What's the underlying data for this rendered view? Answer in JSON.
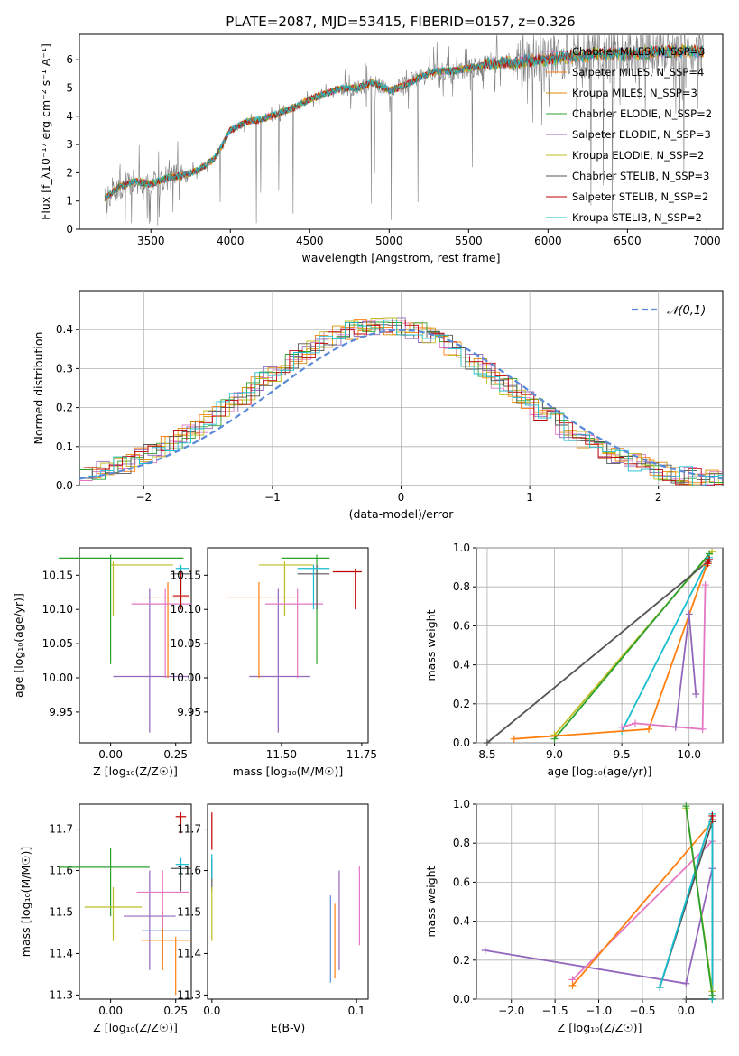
{
  "title": "PLATE=2087, MJD=53415, FIBERID=0157, z=0.326",
  "colors": {
    "chabrier_miles": "#e377c2",
    "salpeter_miles": "#ff7f0e",
    "kroupa_miles": "#e08b00",
    "chabrier_elodie": "#2ca02c",
    "salpeter_elodie": "#9467bd",
    "kroupa_elodie": "#bcbd22",
    "chabrier_stelib": "#555555",
    "salpeter_stelib": "#c00000",
    "kroupa_stelib": "#17becf",
    "data": "#808080",
    "normal": "#5a8ad8"
  },
  "chart_data": [
    {
      "type": "line",
      "xlabel": "wavelength [Angstrom, rest frame]",
      "ylabel": "Flux [f_λ10⁻¹⁷ erg cm⁻² s⁻¹ A⁻¹]",
      "xlim": [
        3050,
        7100
      ],
      "ylim": [
        0,
        6.9
      ],
      "xticks": [
        "3500",
        "4000",
        "4500",
        "5000",
        "5500",
        "6000",
        "6500",
        "7000"
      ],
      "yticks": [
        "0",
        "1",
        "2",
        "3",
        "4",
        "5",
        "6"
      ],
      "legend": [
        "Chabrier MILES, N_SSP=3",
        "Salpeter MILES, N_SSP=4",
        "Kroupa MILES, N_SSP=3",
        "Chabrier ELODIE, N_SSP=2",
        "Salpeter ELODIE, N_SSP=3",
        "Kroupa ELODIE, N_SSP=2",
        "Chabrier STELIB, N_SSP=3",
        "Salpeter STELIB, N_SSP=2",
        "Kroupa STELIB, N_SSP=2"
      ],
      "legend_placement": "right",
      "model_continuum": {
        "x": [
          3210,
          3300,
          3400,
          3500,
          3600,
          3700,
          3800,
          3900,
          4000,
          4100,
          4200,
          4300,
          4400,
          4500,
          4600,
          4700,
          4800,
          4900,
          5000,
          5100,
          5200,
          5300,
          5400,
          5500,
          5600,
          5700,
          5800,
          5900,
          6000,
          6100,
          6200,
          6300,
          6400,
          6500,
          6600,
          6700,
          6800,
          6900,
          7000
        ],
        "y": [
          1.1,
          1.5,
          1.7,
          1.6,
          1.8,
          1.9,
          2.1,
          2.5,
          3.5,
          3.8,
          3.9,
          4.1,
          4.3,
          4.6,
          4.8,
          5.0,
          5.0,
          5.2,
          4.9,
          5.1,
          5.4,
          5.6,
          5.6,
          5.7,
          5.8,
          5.9,
          5.9,
          6.0,
          6.0,
          6.1,
          6.1,
          6.2,
          6.2,
          6.2,
          6.2,
          6.3,
          6.3,
          6.3,
          6.3
        ]
      }
    },
    {
      "type": "line",
      "xlabel": "(data-model)/error",
      "ylabel": "Normed distribution",
      "xlim": [
        -2.5,
        2.5
      ],
      "ylim": [
        0,
        0.5
      ],
      "xticks": [
        "−2",
        "−1",
        "0",
        "1",
        "2"
      ],
      "yticks": [
        "0.0",
        "0.1",
        "0.2",
        "0.3",
        "0.4"
      ],
      "legend": [
        "𝒩(0,1)"
      ],
      "legend_placement": "top-right",
      "grid": true
    },
    {
      "type": "scatter",
      "xlabel": "Z [log₁₀(Z/Z☉)]",
      "ylabel": "age  [log₁₀(age/yr)]",
      "xlim": [
        -0.12,
        0.31
      ],
      "ylim": [
        9.905,
        10.19
      ],
      "xticks": [
        "0.00",
        "0.25"
      ],
      "yticks": [
        "9.95",
        "10.00",
        "10.05",
        "10.10",
        "10.15"
      ],
      "points": [
        {
          "x": 0.0,
          "xe": [
            -0.2,
            0.28
          ],
          "y": 10.175,
          "ye": [
            10.02,
            10.18
          ],
          "c": "chabrier_elodie"
        },
        {
          "x": 0.01,
          "xe": [
            0.0,
            0.24
          ],
          "y": 10.165,
          "ye": [
            10.09,
            10.17
          ],
          "c": "kroupa_elodie"
        },
        {
          "x": 0.15,
          "xe": [
            0.01,
            0.3
          ],
          "y": 10.002,
          "ye": [
            9.92,
            10.13
          ],
          "c": "salpeter_elodie"
        },
        {
          "x": 0.22,
          "xe": [
            0.12,
            0.31
          ],
          "y": 10.118,
          "ye": [
            10.0,
            10.14
          ],
          "c": "salpeter_miles"
        },
        {
          "x": 0.21,
          "xe": [
            0.08,
            0.31
          ],
          "y": 10.108,
          "ye": [
            10.0,
            10.13
          ],
          "c": "chabrier_miles"
        },
        {
          "x": 0.27,
          "xe": [
            0.23,
            0.31
          ],
          "y": 10.152,
          "ye": [
            10.1,
            10.165
          ],
          "c": "chabrier_stelib"
        },
        {
          "x": 0.27,
          "xe": [
            0.25,
            0.3
          ],
          "y": 10.16,
          "ye": [
            10.1,
            10.165
          ],
          "c": "kroupa_stelib"
        },
        {
          "x": 0.27,
          "xe": [
            0.24,
            0.3
          ],
          "y": 10.12,
          "ye": [
            10.1,
            10.155
          ],
          "c": "salpeter_stelib"
        }
      ]
    },
    {
      "type": "scatter",
      "xlabel": "mass [log₁₀(M/M☉)]",
      "ylabel": "",
      "xlim": [
        11.27,
        11.77
      ],
      "ylim": [
        9.905,
        10.19
      ],
      "xticks": [
        "11.50",
        "11.75"
      ],
      "yticks": [
        "9.95",
        "10.00",
        "10.05",
        "10.10",
        "10.15"
      ],
      "points": [
        {
          "x": 11.61,
          "xe": [
            11.5,
            11.65
          ],
          "y": 10.175,
          "ye": [
            10.02,
            10.18
          ],
          "c": "chabrier_elodie"
        },
        {
          "x": 11.51,
          "xe": [
            11.43,
            11.6
          ],
          "y": 10.165,
          "ye": [
            10.09,
            10.17
          ],
          "c": "kroupa_elodie"
        },
        {
          "x": 11.49,
          "xe": [
            11.4,
            11.59
          ],
          "y": 10.002,
          "ye": [
            9.92,
            10.13
          ],
          "c": "salpeter_elodie"
        },
        {
          "x": 11.43,
          "xe": [
            11.33,
            11.56
          ],
          "y": 10.118,
          "ye": [
            10.0,
            10.14
          ],
          "c": "salpeter_miles"
        },
        {
          "x": 11.55,
          "xe": [
            11.45,
            11.63
          ],
          "y": 10.108,
          "ye": [
            10.0,
            10.13
          ],
          "c": "chabrier_miles"
        },
        {
          "x": 11.61,
          "xe": [
            11.55,
            11.65
          ],
          "y": 10.152,
          "ye": [
            10.1,
            10.165
          ],
          "c": "chabrier_stelib"
        },
        {
          "x": 11.6,
          "xe": [
            11.55,
            11.65
          ],
          "y": 10.16,
          "ye": [
            10.1,
            10.165
          ],
          "c": "kroupa_stelib"
        },
        {
          "x": 11.73,
          "xe": [
            11.66,
            11.75
          ],
          "y": 10.155,
          "ye": [
            10.1,
            10.16
          ],
          "c": "salpeter_stelib"
        }
      ]
    },
    {
      "type": "line",
      "xlabel": "age  [log₁₀(age/yr)]",
      "ylabel": "mass weight",
      "xlim": [
        8.42,
        10.25
      ],
      "ylim": [
        0,
        1
      ],
      "xticks": [
        "8.5",
        "9.0",
        "9.5",
        "10.0"
      ],
      "yticks": [
        "0.0",
        "0.2",
        "0.4",
        "0.6",
        "0.8",
        "1.0"
      ],
      "grid": true,
      "series": [
        {
          "c": "kroupa_elodie",
          "x": [
            9.0,
            10.17
          ],
          "y": [
            0.04,
            0.98
          ]
        },
        {
          "c": "chabrier_elodie",
          "x": [
            9.0,
            10.15
          ],
          "y": [
            0.02,
            0.97
          ]
        },
        {
          "c": "chabrier_stelib",
          "x": [
            8.5,
            10.14
          ],
          "y": [
            0.0,
            0.93
          ]
        },
        {
          "c": "kroupa_stelib",
          "x": [
            9.5,
            10.15
          ],
          "y": [
            0.06,
            0.95
          ]
        },
        {
          "c": "salpeter_miles",
          "x": [
            8.7,
            9.7,
            10.13
          ],
          "y": [
            0.02,
            0.07,
            0.91
          ]
        },
        {
          "c": "chabrier_miles",
          "x": [
            9.5,
            9.6,
            10.1,
            10.12
          ],
          "y": [
            0.08,
            0.1,
            0.07,
            0.81
          ]
        },
        {
          "c": "salpeter_elodie",
          "x": [
            9.9,
            10.0,
            10.05
          ],
          "y": [
            0.08,
            0.66,
            0.25
          ]
        },
        {
          "c": "salpeter_stelib",
          "x": [
            10.14,
            10.15
          ],
          "y": [
            0.92,
            0.94
          ]
        }
      ]
    },
    {
      "type": "scatter",
      "xlabel": "Z [log₁₀(Z/Z☉)]",
      "ylabel": "mass [log₁₀(M/M☉)]",
      "xlim": [
        -0.12,
        0.31
      ],
      "ylim": [
        11.29,
        11.76
      ],
      "xticks": [
        "0.00",
        "0.25"
      ],
      "yticks": [
        "11.3",
        "11.4",
        "11.5",
        "11.6",
        "11.7"
      ],
      "points": [
        {
          "x": 0.0,
          "xe": [
            -0.2,
            0.15
          ],
          "y": 11.608,
          "ye": [
            11.49,
            11.655
          ],
          "c": "chabrier_elodie"
        },
        {
          "x": 0.01,
          "xe": [
            -0.1,
            0.12
          ],
          "y": 11.512,
          "ye": [
            11.43,
            11.56
          ],
          "c": "kroupa_elodie"
        },
        {
          "x": 0.15,
          "xe": [
            0.05,
            0.25
          ],
          "y": 11.49,
          "ye": [
            11.36,
            11.6
          ],
          "c": "salpeter_elodie"
        },
        {
          "x": 0.2,
          "xe": [
            0.12,
            0.31
          ],
          "y": 11.455,
          "ye": [
            11.38,
            11.5
          ],
          "c": "normal"
        },
        {
          "x": 0.2,
          "xe": [
            0.12,
            0.31
          ],
          "y": 11.432,
          "ye": [
            11.36,
            11.5
          ],
          "c": "salpeter_miles"
        },
        {
          "x": 0.2,
          "xe": [
            0.1,
            0.3
          ],
          "y": 11.548,
          "ye": [
            11.46,
            11.6
          ],
          "c": "chabrier_miles"
        },
        {
          "x": 0.27,
          "xe": [
            0.23,
            0.31
          ],
          "y": 11.605,
          "ye": [
            11.55,
            11.63
          ],
          "c": "chabrier_stelib"
        },
        {
          "x": 0.27,
          "xe": [
            0.25,
            0.3
          ],
          "y": 11.615,
          "ye": [
            11.59,
            11.63
          ],
          "c": "kroupa_stelib"
        },
        {
          "x": 0.27,
          "xe": [
            0.25,
            0.29
          ],
          "y": 11.73,
          "ye": [
            11.69,
            11.74
          ],
          "c": "salpeter_stelib"
        },
        {
          "x": 0.25,
          "xe": [
            0.25,
            0.25
          ],
          "y": 11.38,
          "ye": [
            11.3,
            11.44
          ],
          "c": "salpeter_miles"
        }
      ]
    },
    {
      "type": "scatter",
      "xlabel": "E(B-V)",
      "ylabel": "",
      "xlim": [
        -0.003,
        0.108
      ],
      "ylim": [
        11.29,
        11.76
      ],
      "xticks": [
        "0.0",
        "0.1"
      ],
      "yticks": [
        "11.3",
        "11.4",
        "11.5",
        "11.6",
        "11.7"
      ],
      "points": [
        {
          "x": 0.0,
          "y": 11.73,
          "ye": [
            11.65,
            11.74
          ],
          "c": "salpeter_stelib"
        },
        {
          "x": 0.0,
          "y": 11.6,
          "ye": [
            11.55,
            11.63
          ],
          "c": "chabrier_stelib"
        },
        {
          "x": 0.0,
          "y": 11.5,
          "ye": [
            11.43,
            11.56
          ],
          "c": "kroupa_elodie"
        },
        {
          "x": 0.0,
          "y": 11.62,
          "ye": [
            11.58,
            11.64
          ],
          "c": "kroupa_stelib"
        },
        {
          "x": 0.082,
          "y": 11.45,
          "ye": [
            11.33,
            11.54
          ],
          "c": "normal"
        },
        {
          "x": 0.085,
          "y": 11.42,
          "ye": [
            11.34,
            11.52
          ],
          "c": "salpeter_miles"
        },
        {
          "x": 0.088,
          "y": 11.49,
          "ye": [
            11.36,
            11.6
          ],
          "c": "salpeter_elodie"
        },
        {
          "x": 0.102,
          "y": 11.55,
          "ye": [
            11.42,
            11.61
          ],
          "c": "chabrier_miles"
        }
      ]
    },
    {
      "type": "line",
      "xlabel": "Z [log₁₀(Z/Z☉)]",
      "ylabel": "mass weight",
      "xlim": [
        -2.4,
        0.42
      ],
      "ylim": [
        0,
        1
      ],
      "xticks": [
        "−2.0",
        "−1.5",
        "−1.0",
        "−0.5",
        "0.0"
      ],
      "yticks": [
        "0.0",
        "0.2",
        "0.4",
        "0.6",
        "0.8",
        "1.0"
      ],
      "grid": true,
      "series": [
        {
          "c": "salpeter_elodie",
          "x": [
            -2.3,
            0.0,
            0.3,
            0.3
          ],
          "y": [
            0.25,
            0.08,
            0.67,
            0.0
          ]
        },
        {
          "c": "chabrier_miles",
          "x": [
            -1.3,
            0.3,
            0.3
          ],
          "y": [
            0.1,
            0.81,
            0.0
          ]
        },
        {
          "c": "salpeter_miles",
          "x": [
            -1.3,
            0.3,
            0.3
          ],
          "y": [
            0.07,
            0.91,
            0.0
          ]
        },
        {
          "c": "chabrier_stelib",
          "x": [
            -0.3,
            0.3,
            0.3,
            0.0
          ],
          "y": [
            0.06,
            0.91,
            0.0,
            0.0
          ]
        },
        {
          "c": "kroupa_stelib",
          "x": [
            -0.3,
            0.3,
            0.3
          ],
          "y": [
            0.06,
            0.95,
            0.0
          ]
        },
        {
          "c": "kroupa_elodie",
          "x": [
            0.0,
            0.3
          ],
          "y": [
            0.98,
            0.04
          ]
        },
        {
          "c": "chabrier_elodie",
          "x": [
            0.0,
            0.3
          ],
          "y": [
            0.99,
            0.02
          ]
        },
        {
          "c": "salpeter_stelib",
          "x": [
            0.3,
            0.3
          ],
          "y": [
            0.92,
            0.94
          ]
        }
      ]
    }
  ]
}
